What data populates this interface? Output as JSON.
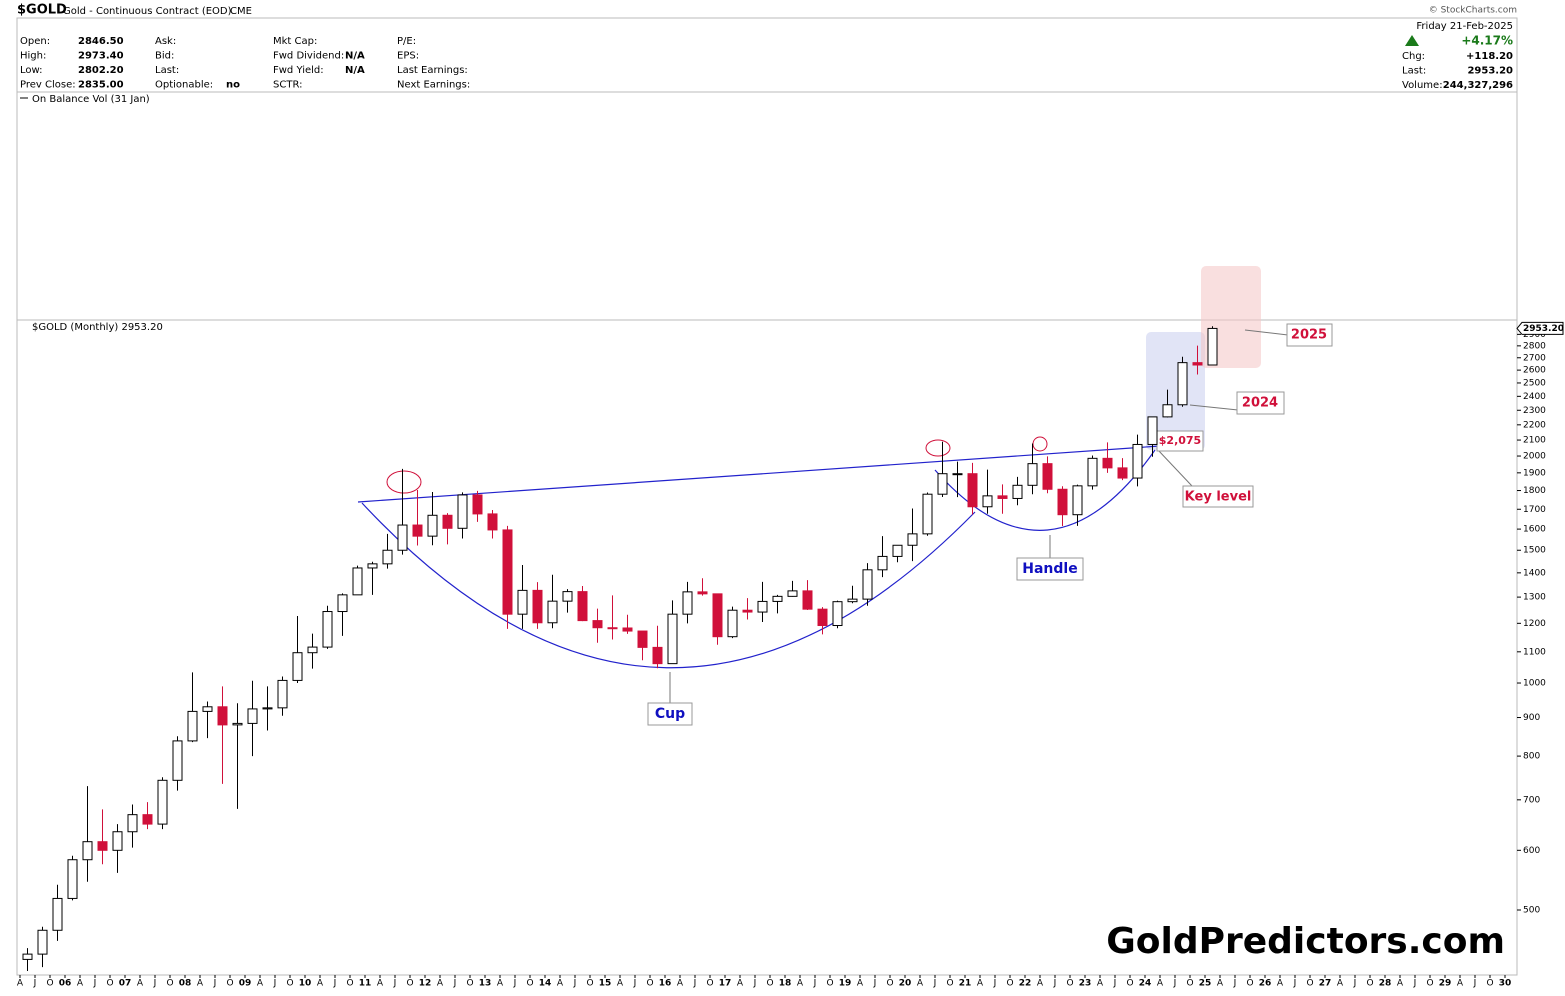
{
  "header": {
    "symbol": "$GOLD",
    "name": "Gold - Continuous Contract (EOD)",
    "exchange": "CME",
    "credit": "© StockCharts.com",
    "date": "Friday  21-Feb-2025",
    "change_pct": "+4.17%",
    "columns": [
      [
        {
          "label": "Open:",
          "value": "2846.50"
        },
        {
          "label": "High:",
          "value": "2973.40"
        },
        {
          "label": "Low:",
          "value": "2802.20"
        },
        {
          "label": "Prev Close:",
          "value": "2835.00"
        }
      ],
      [
        {
          "label": "Ask:"
        },
        {
          "label": "Bid:"
        },
        {
          "label": "Last:"
        },
        {
          "label": "Optionable:",
          "value": "no"
        }
      ],
      [
        {
          "label": "Mkt Cap:"
        },
        {
          "label": "Fwd Dividend:",
          "value": "N/A"
        },
        {
          "label": "Fwd Yield:",
          "value": "N/A"
        },
        {
          "label": "SCTR:"
        }
      ],
      [
        {
          "label": "P/E:"
        },
        {
          "label": "EPS:"
        },
        {
          "label": "Last Earnings:"
        },
        {
          "label": "Next Earnings:"
        }
      ],
      [
        {
          "label": "Chg:",
          "value": "+118.20"
        },
        {
          "label": "Last:",
          "value": "2953.20"
        },
        {
          "label": "Volume:",
          "value": "244,327,296"
        }
      ]
    ]
  },
  "indicator_label": "On Balance Vol (31 Jan)",
  "watermark": "GoldPredictors.com",
  "chart_data": {
    "type": "candlestick",
    "title": "$GOLD (Monthly) 2953.20",
    "last_price": {
      "value": 2953.2,
      "label": "2953.20"
    },
    "categories": [
      "A",
      "J",
      "O",
      "06",
      "A",
      "J",
      "O",
      "07",
      "A",
      "J",
      "O",
      "08",
      "A",
      "J",
      "O",
      "09",
      "A",
      "J",
      "O",
      "10",
      "A",
      "J",
      "O",
      "11",
      "A",
      "J",
      "O",
      "12",
      "A",
      "J",
      "O",
      "13",
      "A",
      "J",
      "O",
      "14",
      "A",
      "J",
      "O",
      "15",
      "A",
      "J",
      "O",
      "16",
      "A",
      "J",
      "O",
      "17",
      "A",
      "J",
      "O",
      "18",
      "A",
      "J",
      "O",
      "19",
      "A",
      "J",
      "O",
      "20",
      "A",
      "J",
      "O",
      "21",
      "A",
      "J",
      "O",
      "22",
      "A",
      "J",
      "O",
      "23",
      "A",
      "J",
      "O",
      "24",
      "A",
      "J",
      "O",
      "25",
      "A",
      "J",
      "O",
      "26",
      "A",
      "J",
      "O",
      "27",
      "A",
      "J",
      "O",
      "28",
      "A",
      "J",
      "O",
      "29",
      "A",
      "J",
      "O",
      "30"
    ],
    "open": [
      430,
      437,
      470,
      518,
      583,
      616,
      600,
      635,
      669,
      650,
      743,
      838,
      917,
      930,
      880,
      884,
      924,
      927,
      1008,
      1097,
      1116,
      1244,
      1309,
      1421,
      1439,
      1500,
      1620,
      1566,
      1669,
      1604,
      1776,
      1676,
      1596,
      1234,
      1327,
      1202,
      1284,
      1322,
      1210,
      1184,
      1183,
      1172,
      1115,
      1061,
      1234,
      1321,
      1313,
      1152,
      1249,
      1242,
      1283,
      1303,
      1325,
      1253,
      1192,
      1282,
      1292,
      1413,
      1472,
      1523,
      1577,
      1780,
      1895,
      1895,
      1713,
      1771,
      1757,
      1829,
      1954,
      1807,
      1672,
      1826,
      1986,
      1929,
      1870,
      2072,
      2254,
      2339,
      2660,
      2641,
      null,
      null,
      null,
      null,
      null,
      null,
      null,
      null,
      null,
      null,
      null,
      null,
      null,
      null,
      null,
      null,
      null,
      null,
      null,
      null
    ],
    "high": [
      445,
      475,
      540,
      590,
      730,
      680,
      650,
      690,
      695,
      750,
      850,
      1033,
      945,
      990,
      940,
      1007,
      990,
      1020,
      1227,
      1163,
      1266,
      1315,
      1431,
      1448,
      1577,
      1923,
      1803,
      1792,
      1680,
      1790,
      1798,
      1696,
      1616,
      1434,
      1361,
      1392,
      1332,
      1345,
      1255,
      1307,
      1232,
      1172,
      1191,
      1287,
      1362,
      1377,
      1313,
      1263,
      1296,
      1362,
      1309,
      1366,
      1369,
      1261,
      1286,
      1346,
      1442,
      1566,
      1524,
      1704,
      1789,
      2089,
      1966,
      1959,
      1919,
      1834,
      1877,
      2078,
      1998,
      1824,
      1833,
      2003,
      2085,
      1987,
      2135,
      2256,
      2450,
      2708,
      2802,
      2973,
      null,
      null,
      null,
      null,
      null,
      null,
      null,
      null,
      null,
      null,
      null,
      null,
      null,
      null,
      null,
      null,
      null,
      null,
      null,
      null
    ],
    "low": [
      415,
      420,
      455,
      515,
      545,
      575,
      560,
      605,
      640,
      640,
      720,
      835,
      845,
      735,
      681,
      800,
      865,
      905,
      1000,
      1045,
      1110,
      1155,
      1310,
      1309,
      1418,
      1480,
      1522,
      1523,
      1527,
      1555,
      1636,
      1555,
      1180,
      1180,
      1180,
      1182,
      1240,
      1208,
      1131,
      1142,
      1162,
      1072,
      1046,
      1061,
      1200,
      1306,
      1124,
      1147,
      1214,
      1205,
      1237,
      1302,
      1250,
      1160,
      1182,
      1276,
      1266,
      1382,
      1446,
      1451,
      1568,
      1765,
      1764,
      1673,
      1677,
      1677,
      1721,
      1780,
      1785,
      1615,
      1616,
      1805,
      1900,
      1858,
      1823,
      1996,
      2250,
      2325,
      2565,
      2641,
      null,
      null,
      null,
      null,
      null,
      null,
      null,
      null,
      null,
      null,
      null,
      null,
      null,
      null,
      null,
      null,
      null,
      null,
      null,
      null
    ],
    "close": [
      437,
      470,
      518,
      583,
      616,
      600,
      635,
      669,
      650,
      743,
      838,
      917,
      930,
      880,
      884,
      924,
      927,
      1008,
      1097,
      1116,
      1244,
      1309,
      1421,
      1439,
      1500,
      1620,
      1566,
      1669,
      1604,
      1776,
      1676,
      1596,
      1234,
      1327,
      1202,
      1284,
      1322,
      1210,
      1184,
      1183,
      1172,
      1115,
      1061,
      1234,
      1321,
      1313,
      1152,
      1249,
      1242,
      1283,
      1303,
      1325,
      1253,
      1192,
      1282,
      1292,
      1413,
      1472,
      1523,
      1577,
      1780,
      1895,
      1895,
      1713,
      1771,
      1757,
      1829,
      1954,
      1807,
      1672,
      1826,
      1986,
      1929,
      1870,
      2072,
      2254,
      2339,
      2660,
      2641,
      2953,
      null,
      null,
      null,
      null,
      null,
      null,
      null,
      null,
      null,
      null,
      null,
      null,
      null,
      null,
      null,
      null,
      null,
      null,
      null,
      null
    ],
    "up_color": "#ffffff",
    "down_color": "#d0103a",
    "wick_color": "#000000",
    "log_scale": true,
    "grid": false,
    "ylim": [
      410,
      3030
    ],
    "yticks": [
      500,
      600,
      700,
      800,
      900,
      1000,
      1100,
      1200,
      1300,
      1400,
      1500,
      1600,
      1700,
      1800,
      1900,
      2000,
      2100,
      2200,
      2300,
      2400,
      2500,
      2600,
      2700,
      2800,
      2900
    ],
    "annotations": {
      "cup": "Cup",
      "handle": "Handle",
      "key_price": "$2,075",
      "key_level": "Key level",
      "year_2024": "2024",
      "year_2025": "2025"
    }
  }
}
